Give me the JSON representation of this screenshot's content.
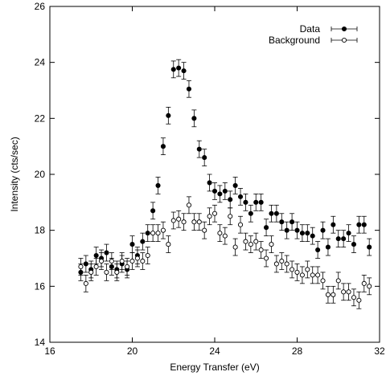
{
  "chart_data": {
    "type": "scatter",
    "xlabel": "Energy Transfer (eV)",
    "ylabel": "Intensity (cts/sec)",
    "xlim": [
      16,
      32
    ],
    "ylim": [
      14,
      26
    ],
    "xticks": [
      16,
      20,
      24,
      28,
      32
    ],
    "yticks": [
      14,
      16,
      18,
      20,
      22,
      24,
      26
    ],
    "legend_position": "top-right",
    "grid": false,
    "error_bars": true,
    "series": [
      {
        "name": "Data",
        "marker": "filled-circle",
        "color": "#000000",
        "x": [
          17.5,
          17.75,
          18.0,
          18.25,
          18.5,
          18.75,
          19.0,
          19.25,
          19.5,
          19.75,
          20.0,
          20.25,
          20.5,
          20.75,
          21.0,
          21.25,
          21.5,
          21.75,
          22.0,
          22.25,
          22.5,
          22.75,
          23.0,
          23.25,
          23.5,
          23.75,
          24.0,
          24.25,
          24.5,
          24.75,
          25.0,
          25.25,
          25.5,
          25.75,
          26.0,
          26.25,
          26.5,
          26.75,
          27.0,
          27.25,
          27.5,
          27.75,
          28.0,
          28.25,
          28.5,
          28.75,
          29.0,
          29.25,
          29.5,
          29.75,
          30.0,
          30.25,
          30.5,
          30.75,
          31.0,
          31.25,
          31.5
        ],
        "y": [
          16.5,
          16.8,
          16.6,
          17.1,
          17.0,
          17.2,
          16.7,
          16.6,
          16.8,
          16.6,
          17.5,
          17.1,
          17.6,
          17.9,
          18.7,
          19.6,
          21.0,
          22.1,
          23.75,
          23.8,
          23.7,
          23.05,
          22.0,
          20.9,
          20.6,
          19.7,
          19.4,
          19.3,
          19.4,
          19.1,
          19.6,
          19.2,
          19.0,
          18.6,
          19.0,
          19.0,
          18.1,
          18.6,
          18.6,
          18.3,
          18.0,
          18.3,
          18.0,
          17.9,
          17.9,
          17.8,
          17.3,
          18.0,
          17.4,
          18.2,
          17.7,
          17.7,
          17.9,
          17.5,
          18.2,
          18.2,
          17.4
        ],
        "err": [
          0.3,
          0.3,
          0.3,
          0.3,
          0.3,
          0.3,
          0.3,
          0.3,
          0.3,
          0.3,
          0.3,
          0.3,
          0.3,
          0.3,
          0.3,
          0.3,
          0.3,
          0.3,
          0.3,
          0.3,
          0.3,
          0.3,
          0.3,
          0.3,
          0.3,
          0.3,
          0.3,
          0.3,
          0.3,
          0.3,
          0.3,
          0.3,
          0.3,
          0.3,
          0.3,
          0.3,
          0.3,
          0.3,
          0.3,
          0.3,
          0.3,
          0.3,
          0.3,
          0.3,
          0.3,
          0.3,
          0.3,
          0.3,
          0.3,
          0.3,
          0.3,
          0.3,
          0.3,
          0.3,
          0.3,
          0.3,
          0.3
        ]
      },
      {
        "name": "Background",
        "marker": "open-circle",
        "color": "#000000",
        "x": [
          17.5,
          17.75,
          18.0,
          18.25,
          18.5,
          18.75,
          19.0,
          19.25,
          19.5,
          19.75,
          20.0,
          20.25,
          20.5,
          20.75,
          21.0,
          21.25,
          21.5,
          21.75,
          22.0,
          22.25,
          22.5,
          22.75,
          23.0,
          23.25,
          23.5,
          23.75,
          24.0,
          24.25,
          24.5,
          24.75,
          25.0,
          25.25,
          25.5,
          25.75,
          26.0,
          26.25,
          26.5,
          26.75,
          27.0,
          27.25,
          27.5,
          27.75,
          28.0,
          28.25,
          28.5,
          28.75,
          29.0,
          29.25,
          29.5,
          29.75,
          30.0,
          30.25,
          30.5,
          30.75,
          31.0,
          31.25,
          31.5
        ],
        "y": [
          16.7,
          16.1,
          16.5,
          16.7,
          16.9,
          16.5,
          16.9,
          16.5,
          16.9,
          16.7,
          16.9,
          17.0,
          16.9,
          17.1,
          17.9,
          17.9,
          18.0,
          17.5,
          18.35,
          18.4,
          18.3,
          18.9,
          18.3,
          18.3,
          18.0,
          18.5,
          18.6,
          17.9,
          17.8,
          18.5,
          17.4,
          18.2,
          17.6,
          17.5,
          17.6,
          17.3,
          17.0,
          17.5,
          16.8,
          16.9,
          16.8,
          16.6,
          16.5,
          16.4,
          16.6,
          16.4,
          16.4,
          16.2,
          15.7,
          15.7,
          16.2,
          15.8,
          15.8,
          15.6,
          15.5,
          16.1,
          16.0
        ],
        "err": [
          0.3,
          0.3,
          0.3,
          0.3,
          0.3,
          0.3,
          0.3,
          0.3,
          0.3,
          0.3,
          0.3,
          0.3,
          0.3,
          0.3,
          0.3,
          0.3,
          0.3,
          0.3,
          0.3,
          0.3,
          0.3,
          0.3,
          0.3,
          0.3,
          0.3,
          0.3,
          0.3,
          0.3,
          0.3,
          0.3,
          0.3,
          0.3,
          0.3,
          0.3,
          0.3,
          0.3,
          0.3,
          0.3,
          0.3,
          0.3,
          0.3,
          0.3,
          0.3,
          0.3,
          0.3,
          0.3,
          0.3,
          0.3,
          0.3,
          0.3,
          0.3,
          0.3,
          0.3,
          0.3,
          0.3,
          0.3,
          0.3
        ]
      }
    ]
  }
}
